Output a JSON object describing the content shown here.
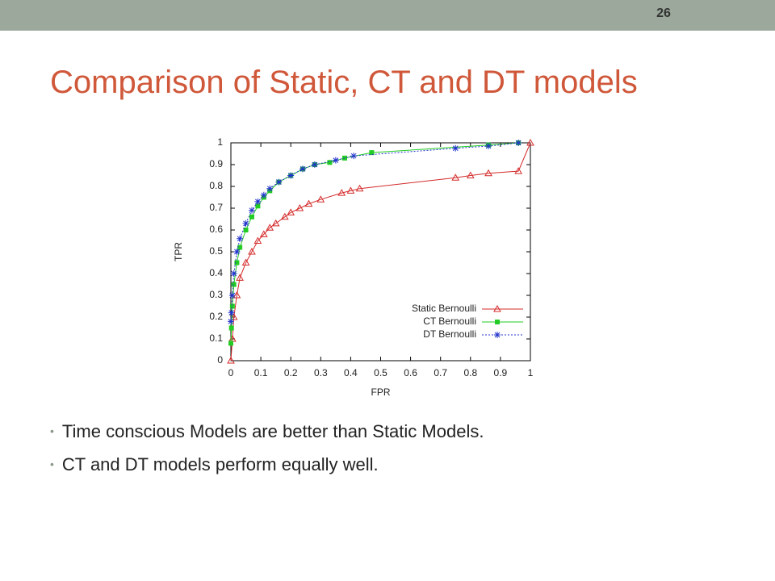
{
  "slide_number": "26",
  "title": "Comparison of Static, CT and DT models",
  "bullets": [
    "Time conscious Models are better than Static Models.",
    "CT and DT models perform equally well."
  ],
  "chart_data": {
    "type": "line",
    "xlabel": "FPR",
    "ylabel": "TPR",
    "xlim": [
      0,
      1
    ],
    "ylim": [
      0,
      1
    ],
    "xticks": [
      0,
      0.1,
      0.2,
      0.3,
      0.4,
      0.5,
      0.6,
      0.7,
      0.8,
      0.9,
      1
    ],
    "yticks": [
      0,
      0.1,
      0.2,
      0.3,
      0.4,
      0.5,
      0.6,
      0.7,
      0.8,
      0.9,
      1
    ],
    "legend": "lower right",
    "series": [
      {
        "name": "Static Bernoulli",
        "color": "#d42a2a",
        "marker": "triangle",
        "dash": "solid",
        "x": [
          0,
          0.005,
          0.01,
          0.02,
          0.03,
          0.05,
          0.07,
          0.09,
          0.11,
          0.13,
          0.15,
          0.18,
          0.2,
          0.23,
          0.26,
          0.3,
          0.37,
          0.4,
          0.43,
          0.75,
          0.8,
          0.86,
          0.96,
          1
        ],
        "values": [
          0,
          0.1,
          0.2,
          0.3,
          0.38,
          0.45,
          0.5,
          0.55,
          0.58,
          0.61,
          0.63,
          0.66,
          0.68,
          0.7,
          0.72,
          0.74,
          0.77,
          0.78,
          0.79,
          0.84,
          0.85,
          0.86,
          0.87,
          1
        ]
      },
      {
        "name": "CT Bernoulli",
        "color": "#22cc22",
        "marker": "square",
        "dash": "solid",
        "x": [
          0,
          0.002,
          0.005,
          0.01,
          0.02,
          0.03,
          0.05,
          0.07,
          0.09,
          0.11,
          0.13,
          0.16,
          0.2,
          0.24,
          0.28,
          0.33,
          0.38,
          0.47,
          0.86,
          0.96
        ],
        "values": [
          0.08,
          0.15,
          0.25,
          0.35,
          0.45,
          0.52,
          0.6,
          0.66,
          0.71,
          0.75,
          0.78,
          0.82,
          0.85,
          0.88,
          0.9,
          0.91,
          0.93,
          0.955,
          0.99,
          1
        ]
      },
      {
        "name": "DT Bernoulli",
        "color": "#2233cc",
        "marker": "star",
        "dash": "dotted",
        "x": [
          0,
          0.002,
          0.005,
          0.01,
          0.02,
          0.03,
          0.05,
          0.07,
          0.09,
          0.11,
          0.13,
          0.16,
          0.2,
          0.24,
          0.28,
          0.35,
          0.41,
          0.75,
          0.86,
          0.96
        ],
        "values": [
          0.18,
          0.22,
          0.3,
          0.4,
          0.5,
          0.56,
          0.63,
          0.69,
          0.73,
          0.76,
          0.79,
          0.82,
          0.85,
          0.88,
          0.9,
          0.92,
          0.94,
          0.975,
          0.985,
          1
        ]
      }
    ]
  }
}
